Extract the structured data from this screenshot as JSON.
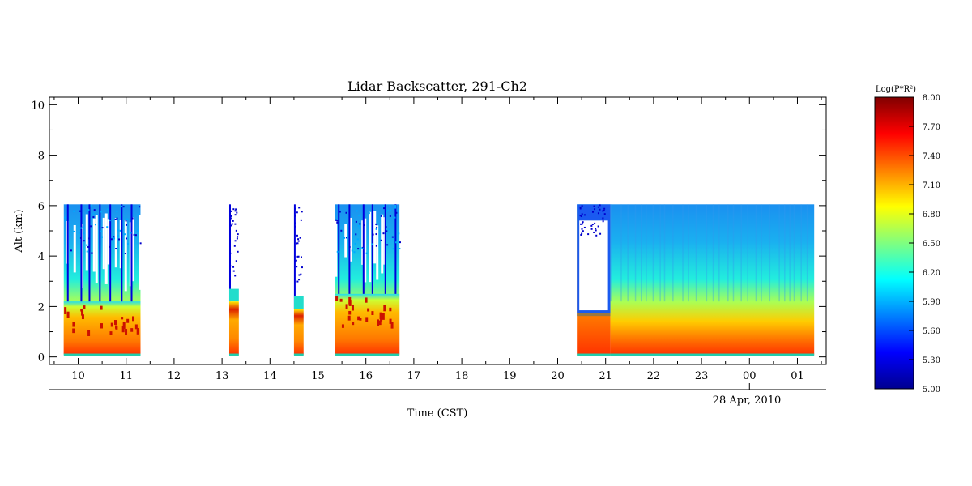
{
  "chart_data": {
    "type": "heatmap",
    "title": "Lidar Backscatter, 291-Ch2",
    "xlabel": "Time (CST)",
    "ylabel": "Alt (km)",
    "date_label": "28 Apr, 2010",
    "x_tick_labels": [
      "10",
      "11",
      "12",
      "13",
      "14",
      "15",
      "16",
      "17",
      "18",
      "19",
      "20",
      "21",
      "22",
      "23",
      "00",
      "01"
    ],
    "x_tick_hours": [
      10,
      11,
      12,
      13,
      14,
      15,
      16,
      17,
      18,
      19,
      20,
      21,
      22,
      23,
      24,
      25
    ],
    "xlim_hours": [
      9.4,
      25.6
    ],
    "date_tick_hour": 24,
    "y_ticks": [
      0,
      2,
      4,
      6,
      8,
      10
    ],
    "ylim": [
      -0.3,
      10.3
    ],
    "colorbar": {
      "label": "Log(P*R²)",
      "ticks": [
        "5.00",
        "5.30",
        "5.60",
        "5.90",
        "6.20",
        "6.50",
        "6.80",
        "7.10",
        "7.40",
        "7.70",
        "8.00"
      ],
      "range": [
        5.0,
        8.0
      ],
      "colormap": "jet"
    },
    "data_segments": [
      {
        "start": 9.7,
        "end": 11.3,
        "top_km": 6.05,
        "character": "broken clouds/columns, boundary layer ~1.5-2.5 km"
      },
      {
        "start": 13.15,
        "end": 13.35,
        "top_km": 6.05,
        "character": "narrow segment"
      },
      {
        "start": 14.5,
        "end": 14.7,
        "top_km": 6.05,
        "character": "narrow segment"
      },
      {
        "start": 15.35,
        "end": 16.7,
        "top_km": 6.05,
        "character": "broken clouds, boundary layer ~2-2.8 km"
      },
      {
        "start": 20.4,
        "end": 21.1,
        "top_km": 6.05,
        "character": "boundary layer top ~1.7 km"
      },
      {
        "start": 21.1,
        "end": 25.35,
        "top_km": 6.05,
        "character": "smooth gradient, high values near surface decreasing with altitude"
      }
    ]
  }
}
